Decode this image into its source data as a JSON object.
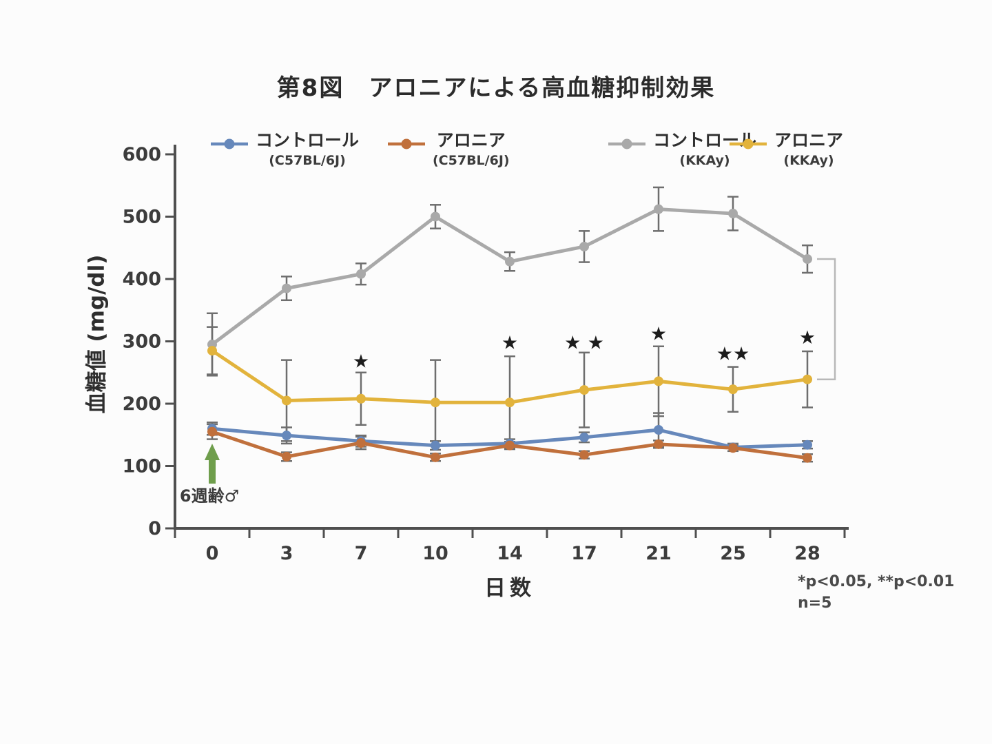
{
  "figure": {
    "title": "第8図　アロニアによる高血糖抑制効果",
    "footnote_line1": "*p<0.05, **p<0.01",
    "footnote_line2": "n=5"
  },
  "chart_data": {
    "type": "line",
    "title": "第8図　アロニアによる高血糖抑制効果",
    "xlabel": "日数",
    "ylabel": "血糖値 (mg/dl)",
    "x": [
      0,
      3,
      7,
      10,
      14,
      17,
      21,
      25,
      28
    ],
    "ylim": [
      0,
      600
    ],
    "ytick_step": 100,
    "grid": false,
    "legend_position": "top",
    "series": [
      {
        "name": "コントロール",
        "strain": "(C57BL/6J)",
        "color": "#6688bb",
        "values": [
          160,
          149,
          140,
          133,
          136,
          146,
          158,
          130,
          134
        ],
        "errors": [
          10,
          13,
          9,
          7,
          7,
          8,
          27,
          6,
          6
        ]
      },
      {
        "name": "アロニア",
        "strain": "(C57BL/6J)",
        "color": "#c0703c",
        "values": [
          155,
          115,
          137,
          114,
          133,
          118,
          135,
          129,
          113
        ],
        "errors": [
          12,
          7,
          10,
          6,
          6,
          6,
          6,
          5,
          6
        ]
      },
      {
        "name": "コントロール",
        "strain": "(KKAy)",
        "color": "#a9a9a9",
        "values": [
          295,
          385,
          408,
          500,
          428,
          452,
          512,
          505,
          432
        ],
        "errors": [
          50,
          19,
          17,
          19,
          15,
          25,
          35,
          27,
          22
        ]
      },
      {
        "name": "アロニア",
        "strain": "(KKAy)",
        "color": "#e2b33c",
        "values": [
          285,
          205,
          208,
          202,
          202,
          222,
          236,
          223,
          239
        ],
        "errors": [
          38,
          65,
          42,
          68,
          74,
          60,
          56,
          36,
          45
        ]
      }
    ],
    "significance": [
      {
        "x": 7,
        "label": "*",
        "y": 268
      },
      {
        "x": 14,
        "label": "*",
        "y": 298
      },
      {
        "x": 17,
        "label": "* *",
        "y": 298
      },
      {
        "x": 21,
        "label": "*",
        "y": 312
      },
      {
        "x": 25,
        "label": "**",
        "y": 280
      },
      {
        "x": 28,
        "label": "*",
        "y": 306
      }
    ],
    "bracket": {
      "x_day": 28,
      "from_value": 432,
      "to_value": 239
    },
    "arrow": {
      "x_day": 0,
      "label": "6週齢♂",
      "color": "#6f9e4c"
    }
  }
}
